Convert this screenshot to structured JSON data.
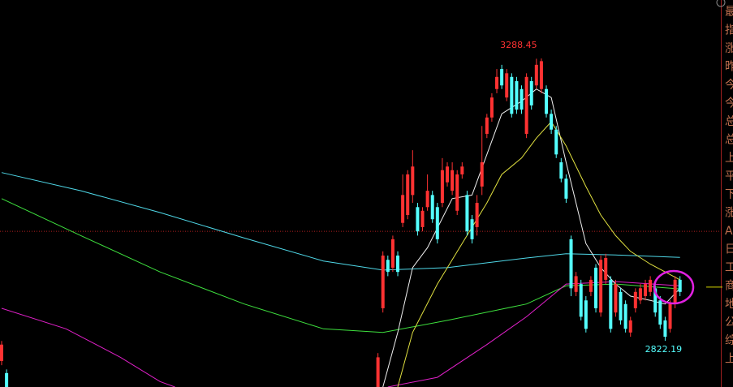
{
  "chart_data": {
    "type": "candlestick",
    "xlim": [
      -0.328,
      147.7
    ],
    "ylim": [
      2746,
      3385
    ],
    "up_color": "#ff3232",
    "down_color": "#54ffff",
    "high_label": 3288.45,
    "high_label_color": "#ff3232",
    "low_label": 2822.19,
    "low_label_color": "#54ffff",
    "reference_line": {
      "value": 3003,
      "color": "#b02020"
    },
    "price_marker": {
      "value": 2911,
      "color": "#d8d800"
    },
    "candles": {
      "x": [
        0,
        1,
        76,
        77,
        78,
        79,
        80,
        81,
        82,
        83,
        84,
        85,
        86,
        87,
        88,
        89,
        90,
        91,
        92,
        93,
        94,
        95,
        96,
        97,
        98,
        99,
        100,
        101,
        102,
        103,
        104,
        105,
        106,
        107,
        108,
        109,
        110,
        111,
        112,
        113,
        114,
        115,
        116,
        117,
        118,
        119,
        120,
        121,
        122,
        123,
        124,
        125,
        126,
        127,
        128,
        129,
        130,
        131,
        132,
        133,
        134,
        135,
        136,
        137
      ],
      "open": [
        2789,
        2769,
        2746,
        2876,
        2956,
        2943,
        2963,
        3017,
        3030,
        3063,
        3043,
        3010,
        3043,
        3063,
        3043,
        3050,
        3084,
        3070,
        3037,
        3097,
        3063,
        3023,
        3010,
        3077,
        3164,
        3191,
        3238,
        3271,
        3224,
        3258,
        3251,
        3238,
        3164,
        3251,
        3244,
        3238,
        3238,
        3197,
        3171,
        3117,
        3090,
        2990,
        2903,
        2916,
        2889,
        2903,
        2943,
        2869,
        2923,
        2923,
        2869,
        2903,
        2883,
        2836,
        2876,
        2889,
        2896,
        2903,
        2909,
        2889,
        2856,
        2842,
        2883,
        2923
      ],
      "high": [
        2822,
        2775,
        2802,
        2970,
        2963,
        2996,
        2970,
        3097,
        3104,
        3137,
        3050,
        3043,
        3097,
        3070,
        3050,
        3124,
        3117,
        3117,
        3104,
        3117,
        3070,
        3030,
        3063,
        3177,
        3197,
        3231,
        3271,
        3278,
        3271,
        3264,
        3258,
        3244,
        3264,
        3258,
        3288,
        3288.45,
        3244,
        3204,
        3177,
        3124,
        3097,
        2996,
        2936,
        2923,
        2896,
        2929,
        2949,
        2963,
        2966,
        2929,
        2923,
        2909,
        2889,
        2862,
        2909,
        2916,
        2923,
        2929,
        2916,
        2896,
        2862,
        2889,
        2929,
        2929
      ],
      "low": [
        2782,
        2746,
        2746,
        2869,
        2929,
        2936,
        2929,
        3010,
        3023,
        3050,
        2996,
        3003,
        3037,
        3017,
        2983,
        3043,
        3077,
        3063,
        3030,
        3090,
        2996,
        2983,
        2996,
        3063,
        3157,
        3184,
        3231,
        3238,
        3218,
        3191,
        3197,
        3197,
        3157,
        3204,
        3238,
        3231,
        3191,
        3164,
        3124,
        3084,
        3050,
        2896,
        2896,
        2856,
        2836,
        2896,
        2869,
        2862,
        2916,
        2836,
        2862,
        2849,
        2836,
        2829,
        2869,
        2883,
        2889,
        2896,
        2862,
        2842,
        2822.19,
        2836,
        2876,
        2896
      ],
      "close": [
        2816,
        2746,
        2795,
        2963,
        2936,
        2990,
        2936,
        3063,
        3097,
        3110,
        3003,
        3037,
        3070,
        3023,
        2990,
        3104,
        3110,
        3104,
        3097,
        3110,
        3003,
        2990,
        3050,
        3117,
        3191,
        3224,
        3258,
        3244,
        3264,
        3197,
        3204,
        3204,
        3258,
        3211,
        3278,
        3284,
        3197,
        3171,
        3130,
        3090,
        3057,
        2909,
        2929,
        2862,
        2842,
        2923,
        2876,
        2956,
        2959,
        2842,
        2916,
        2856,
        2842,
        2856,
        2903,
        2909,
        2916,
        2923,
        2869,
        2849,
        2829,
        2883,
        2923,
        2903
      ]
    },
    "series": [
      {
        "color": "#4fd8e8",
        "x": [
          0,
          16,
          32,
          49,
          65,
          77,
          90,
          106,
          114,
          124,
          137
        ],
        "values": [
          3100,
          3070,
          3034,
          2992,
          2954,
          2939,
          2943,
          2959,
          2966,
          2964,
          2960
        ]
      },
      {
        "color": "#3ee03e",
        "x": [
          0,
          16,
          32,
          49,
          65,
          77,
          90,
          106,
          114,
          124,
          137
        ],
        "values": [
          3057,
          2996,
          2936,
          2883,
          2842,
          2836,
          2856,
          2883,
          2913,
          2916,
          2908
        ]
      },
      {
        "color": "#e020c8",
        "x": [
          0,
          13,
          24,
          32,
          35,
          null,
          78,
          88,
          98,
          106,
          114,
          124,
          137
        ],
        "values": [
          2876,
          2842,
          2795,
          2755,
          2746,
          null,
          2746,
          2762,
          2816,
          2862,
          2916,
          2920,
          2913
        ]
      },
      {
        "color": "#f0f0f0",
        "x": [
          77,
          80,
          83,
          86,
          91,
          95,
          98,
          101,
          105,
          108,
          111,
          114,
          118,
          121,
          124,
          127,
          131,
          134,
          137
        ],
        "values": [
          2746,
          2836,
          2943,
          2976,
          3057,
          3063,
          3130,
          3197,
          3218,
          3238,
          3224,
          3117,
          2983,
          2943,
          2916,
          2896,
          2889,
          2883,
          2909
        ]
      },
      {
        "color": "#e0e040",
        "x": [
          80,
          83,
          88,
          93,
          98,
          101,
          105,
          108,
          111,
          114,
          118,
          121,
          124,
          127,
          131,
          134,
          137
        ],
        "values": [
          2746,
          2836,
          2916,
          2983,
          3050,
          3097,
          3124,
          3157,
          3184,
          3144,
          3077,
          3030,
          2996,
          2970,
          2949,
          2936,
          2923
        ]
      }
    ],
    "side_labels": [
      "最",
      "指",
      "涨",
      "昨",
      "今",
      "今",
      "总",
      "总",
      "上",
      "平",
      "下",
      "涨",
      "A",
      "日",
      "工",
      "商",
      "地",
      "公",
      "综",
      "上"
    ]
  }
}
